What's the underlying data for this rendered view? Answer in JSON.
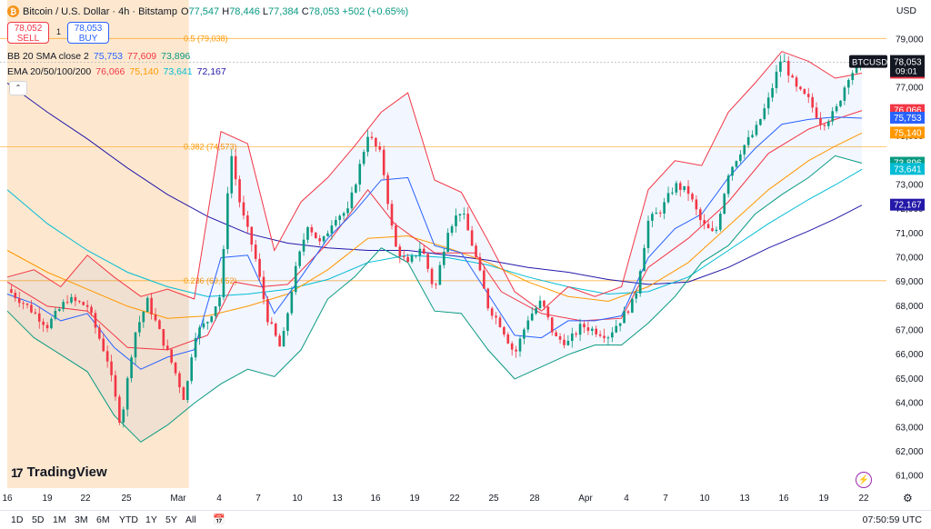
{
  "header": {
    "coin_icon": "bitcoin-icon",
    "symbol_title": "Bitcoin / U.S. Dollar · 4h · Bitstamp",
    "ohlc": {
      "o_label": "O",
      "o": "77,547",
      "h_label": "H",
      "h": "78,446",
      "l_label": "L",
      "l": "77,384",
      "c_label": "C",
      "c": "78,053",
      "change": "+502 (+0.65%)"
    },
    "currency": "USD"
  },
  "trade": {
    "sell_price": "78,052",
    "sell_label": "SELL",
    "spread": "1",
    "buy_price": "78,053",
    "buy_label": "BUY"
  },
  "indicators": {
    "bb": {
      "label": "BB 20 SMA close 2",
      "values": [
        "75,753",
        "77,609",
        "73,896"
      ],
      "colors": [
        "#2962ff",
        "#f23645",
        "#089981"
      ]
    },
    "ema": {
      "label": "EMA 20/50/100/200",
      "values": [
        "76,066",
        "75,140",
        "73,641",
        "72,167"
      ],
      "colors": [
        "#f23645",
        "#ff9800",
        "#00bcd4",
        "#2318a8"
      ]
    }
  },
  "branding": {
    "logo_text": "TradingView"
  },
  "bottom": {
    "ranges": [
      "1D",
      "5D",
      "1M",
      "3M",
      "6M",
      "YTD",
      "1Y",
      "5Y",
      "All"
    ],
    "calendar_icon": "calendar-icon",
    "clock": "07:50:59 UTC"
  },
  "chart_data": {
    "type": "candlestick",
    "symbol": "BTCUSD",
    "timeframe": "4h",
    "price_axis": {
      "ticks": [
        61000,
        62000,
        63000,
        64000,
        65000,
        66000,
        67000,
        68000,
        69000,
        70000,
        71000,
        72000,
        73000,
        74000,
        75000,
        76000,
        77000,
        78000,
        79000
      ],
      "range": [
        60500,
        79800
      ],
      "tick_labels": [
        "61,000",
        "62,000",
        "63,000",
        "64,000",
        "65,000",
        "66,000",
        "67,000",
        "68,000",
        "69,000",
        "70,000",
        "71,000",
        "72,000",
        "73,000",
        "74,000",
        "75,000",
        "76,000",
        "77,000",
        "78,000",
        "79,000"
      ]
    },
    "time_axis": {
      "labels": [
        "16",
        "19",
        "22",
        "25",
        "Mar",
        "4",
        "7",
        "10",
        "13",
        "16",
        "19",
        "22",
        "25",
        "28",
        "Apr",
        "4",
        "7",
        "10",
        "13",
        "16",
        "19",
        "22"
      ],
      "start_day": 16,
      "end_day": 52.8
    },
    "last_price_tag": {
      "label": "BTCUSD",
      "price": "78,053",
      "countdown": "09:01",
      "value": 78053
    },
    "price_tags": [
      {
        "value": 77609,
        "text": "77,609",
        "color": "#f23645"
      },
      {
        "value": 76066,
        "text": "76,066",
        "color": "#f23645"
      },
      {
        "value": 75753,
        "text": "75,753",
        "color": "#2962ff"
      },
      {
        "value": 75140,
        "text": "75,140",
        "color": "#ff9800"
      },
      {
        "value": 73896,
        "text": "73,896",
        "color": "#089981"
      },
      {
        "value": 73641,
        "text": "73,641",
        "color": "#00bcd4"
      },
      {
        "value": 72167,
        "text": "72,167",
        "color": "#2318a8"
      }
    ],
    "fib_levels": [
      {
        "label": "0.5 (79,038)",
        "value": 79038
      },
      {
        "label": "0.382 (74,573)",
        "value": 74573
      },
      {
        "label": "0.236 (69,052)",
        "value": 69052
      }
    ],
    "shaded_region": {
      "from_day": 16,
      "to_day": 29.6,
      "color": "#fde8cf"
    },
    "close_path": [
      [
        16,
        68700
      ],
      [
        17.5,
        68000
      ],
      [
        19,
        67200
      ],
      [
        20.5,
        68300
      ],
      [
        22,
        68000
      ],
      [
        23.5,
        65800
      ],
      [
        24.5,
        63100
      ],
      [
        25.5,
        66800
      ],
      [
        26.5,
        68200
      ],
      [
        27.5,
        66800
      ],
      [
        28.5,
        65400
      ],
      [
        29.3,
        64100
      ],
      [
        30,
        66800
      ],
      [
        31,
        67400
      ],
      [
        32,
        68500
      ],
      [
        32.7,
        74500
      ],
      [
        33.5,
        72000
      ],
      [
        34.5,
        70200
      ],
      [
        35.5,
        67500
      ],
      [
        36.5,
        66200
      ],
      [
        37.5,
        69300
      ],
      [
        38.5,
        71400
      ],
      [
        39.5,
        70500
      ],
      [
        40.5,
        71700
      ],
      [
        41.5,
        71900
      ],
      [
        42.5,
        74000
      ],
      [
        43,
        75100
      ],
      [
        44,
        74200
      ],
      [
        45,
        70500
      ],
      [
        46,
        69700
      ],
      [
        47,
        70500
      ],
      [
        48,
        68600
      ],
      [
        49,
        71200
      ],
      [
        50,
        72000
      ],
      [
        51,
        70200
      ],
      [
        52,
        68000
      ],
      [
        53,
        67200
      ],
      [
        54,
        66000
      ],
      [
        55,
        67500
      ],
      [
        56,
        68200
      ],
      [
        57,
        66700
      ],
      [
        58,
        66500
      ],
      [
        59,
        67200
      ],
      [
        60,
        67000
      ],
      [
        61,
        66800
      ],
      [
        62,
        67500
      ],
      [
        63,
        68300
      ],
      [
        64,
        71500
      ],
      [
        65,
        72000
      ],
      [
        66,
        73000
      ],
      [
        67,
        72700
      ],
      [
        68,
        71400
      ],
      [
        69,
        70900
      ],
      [
        70,
        73500
      ],
      [
        71,
        74500
      ],
      [
        72,
        75200
      ],
      [
        73,
        76500
      ],
      [
        74,
        78300
      ],
      [
        75,
        77000
      ],
      [
        76,
        76500
      ],
      [
        77,
        75500
      ],
      [
        78,
        76000
      ],
      [
        79,
        77500
      ],
      [
        80,
        78053
      ]
    ],
    "bb_upper": [
      [
        16,
        69200
      ],
      [
        18,
        69500
      ],
      [
        20,
        68800
      ],
      [
        22,
        70100
      ],
      [
        24,
        69200
      ],
      [
        26,
        68400
      ],
      [
        28,
        68700
      ],
      [
        30,
        68300
      ],
      [
        32,
        75200
      ],
      [
        34,
        74700
      ],
      [
        36,
        70300
      ],
      [
        38,
        72300
      ],
      [
        40,
        73300
      ],
      [
        42,
        74600
      ],
      [
        44,
        76000
      ],
      [
        46,
        76800
      ],
      [
        48,
        73200
      ],
      [
        50,
        72700
      ],
      [
        52,
        70700
      ],
      [
        54,
        68600
      ],
      [
        56,
        67800
      ],
      [
        58,
        68800
      ],
      [
        60,
        68400
      ],
      [
        62,
        68800
      ],
      [
        64,
        72800
      ],
      [
        66,
        74000
      ],
      [
        68,
        73800
      ],
      [
        70,
        76000
      ],
      [
        72,
        77200
      ],
      [
        74,
        78500
      ],
      [
        76,
        78100
      ],
      [
        78,
        77400
      ],
      [
        80,
        77609
      ]
    ],
    "bb_lower": [
      [
        16,
        67800
      ],
      [
        18,
        66700
      ],
      [
        20,
        66000
      ],
      [
        22,
        65300
      ],
      [
        24,
        63500
      ],
      [
        26,
        62400
      ],
      [
        28,
        63100
      ],
      [
        30,
        64000
      ],
      [
        32,
        64800
      ],
      [
        34,
        65400
      ],
      [
        36,
        65100
      ],
      [
        38,
        66200
      ],
      [
        40,
        68300
      ],
      [
        42,
        69200
      ],
      [
        44,
        70400
      ],
      [
        46,
        69800
      ],
      [
        48,
        67800
      ],
      [
        50,
        67700
      ],
      [
        52,
        66200
      ],
      [
        54,
        65000
      ],
      [
        56,
        65500
      ],
      [
        58,
        66000
      ],
      [
        60,
        66400
      ],
      [
        62,
        66400
      ],
      [
        64,
        67300
      ],
      [
        66,
        68400
      ],
      [
        68,
        69800
      ],
      [
        70,
        70500
      ],
      [
        72,
        71800
      ],
      [
        74,
        72600
      ],
      [
        76,
        73300
      ],
      [
        78,
        74200
      ],
      [
        80,
        73896
      ]
    ],
    "bb_basis": [
      [
        16,
        68500
      ],
      [
        18,
        68100
      ],
      [
        20,
        67400
      ],
      [
        22,
        67700
      ],
      [
        24,
        66300
      ],
      [
        26,
        65400
      ],
      [
        28,
        65900
      ],
      [
        30,
        66200
      ],
      [
        32,
        70000
      ],
      [
        34,
        70100
      ],
      [
        36,
        67700
      ],
      [
        38,
        69200
      ],
      [
        40,
        70800
      ],
      [
        42,
        71900
      ],
      [
        44,
        73200
      ],
      [
        46,
        73300
      ],
      [
        48,
        70500
      ],
      [
        50,
        70200
      ],
      [
        52,
        68500
      ],
      [
        54,
        66800
      ],
      [
        56,
        66700
      ],
      [
        58,
        67400
      ],
      [
        60,
        67400
      ],
      [
        62,
        67600
      ],
      [
        64,
        70000
      ],
      [
        66,
        71200
      ],
      [
        68,
        71800
      ],
      [
        70,
        73300
      ],
      [
        72,
        74500
      ],
      [
        74,
        75500
      ],
      [
        76,
        75700
      ],
      [
        78,
        75800
      ],
      [
        80,
        75753
      ]
    ],
    "ema20": [
      [
        16,
        69000
      ],
      [
        19,
        68000
      ],
      [
        22,
        67800
      ],
      [
        25,
        66300
      ],
      [
        28,
        66200
      ],
      [
        31,
        66800
      ],
      [
        33,
        69000
      ],
      [
        35,
        68800
      ],
      [
        37,
        68900
      ],
      [
        40,
        70600
      ],
      [
        43,
        72800
      ],
      [
        45,
        71400
      ],
      [
        48,
        70200
      ],
      [
        51,
        70200
      ],
      [
        53,
        68600
      ],
      [
        56,
        67700
      ],
      [
        59,
        67400
      ],
      [
        62,
        67500
      ],
      [
        64,
        69600
      ],
      [
        67,
        70800
      ],
      [
        70,
        72300
      ],
      [
        73,
        74300
      ],
      [
        76,
        75300
      ],
      [
        78,
        75700
      ],
      [
        80,
        76066
      ]
    ],
    "ema50": [
      [
        16,
        70300
      ],
      [
        19,
        69400
      ],
      [
        22,
        68700
      ],
      [
        25,
        68000
      ],
      [
        28,
        67500
      ],
      [
        31,
        67600
      ],
      [
        34,
        68000
      ],
      [
        37,
        68500
      ],
      [
        40,
        69500
      ],
      [
        43,
        70800
      ],
      [
        46,
        70900
      ],
      [
        49,
        70400
      ],
      [
        52,
        69800
      ],
      [
        55,
        69000
      ],
      [
        58,
        68400
      ],
      [
        61,
        68200
      ],
      [
        64,
        68800
      ],
      [
        67,
        69800
      ],
      [
        70,
        71300
      ],
      [
        73,
        72800
      ],
      [
        76,
        74000
      ],
      [
        78,
        74600
      ],
      [
        80,
        75140
      ]
    ],
    "ema100": [
      [
        16,
        72800
      ],
      [
        19,
        71400
      ],
      [
        22,
        70300
      ],
      [
        25,
        69400
      ],
      [
        28,
        68800
      ],
      [
        31,
        68400
      ],
      [
        34,
        68500
      ],
      [
        37,
        68700
      ],
      [
        40,
        69100
      ],
      [
        43,
        69800
      ],
      [
        46,
        70100
      ],
      [
        49,
        70000
      ],
      [
        52,
        69700
      ],
      [
        55,
        69200
      ],
      [
        58,
        68800
      ],
      [
        61,
        68500
      ],
      [
        64,
        68600
      ],
      [
        67,
        69200
      ],
      [
        70,
        70300
      ],
      [
        73,
        71400
      ],
      [
        76,
        72400
      ],
      [
        78,
        73000
      ],
      [
        80,
        73641
      ]
    ],
    "ema200": [
      [
        16,
        77200
      ],
      [
        19,
        76000
      ],
      [
        22,
        74900
      ],
      [
        25,
        73700
      ],
      [
        28,
        72600
      ],
      [
        31,
        71700
      ],
      [
        34,
        71000
      ],
      [
        37,
        70600
      ],
      [
        40,
        70400
      ],
      [
        43,
        70300
      ],
      [
        46,
        70300
      ],
      [
        49,
        70100
      ],
      [
        52,
        69900
      ],
      [
        55,
        69600
      ],
      [
        58,
        69400
      ],
      [
        61,
        69100
      ],
      [
        64,
        68900
      ],
      [
        67,
        69000
      ],
      [
        70,
        69600
      ],
      [
        73,
        70400
      ],
      [
        76,
        71100
      ],
      [
        78,
        71600
      ],
      [
        80,
        72167
      ]
    ]
  }
}
